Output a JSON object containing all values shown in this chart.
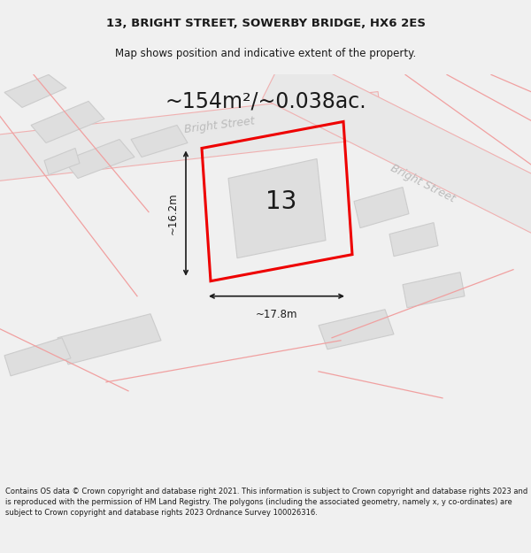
{
  "title_line1": "13, BRIGHT STREET, SOWERBY BRIDGE, HX6 2ES",
  "title_line2": "Map shows position and indicative extent of the property.",
  "area_text": "~154m²/~0.038ac.",
  "number_label": "13",
  "dim_width": "~17.8m",
  "dim_height": "~16.2m",
  "street_label1": "Bright Street",
  "street_label2": "Bright Street",
  "footer_text": "Contains OS data © Crown copyright and database right 2021. This information is subject to Crown copyright and database rights 2023 and is reproduced with the permission of HM Land Registry. The polygons (including the associated geometry, namely x, y co-ordinates) are subject to Crown copyright and database rights 2023 Ordnance Survey 100026316.",
  "bg_color": "#f0f0f0",
  "map_bg_color": "#ffffff",
  "plot_color_red": "#ee0000",
  "building_fill": "#dedede",
  "building_edge": "#cccccc",
  "road_fill": "#e8e8e8",
  "road_edge": "#f0b0b0",
  "pink_line": "#f0a0a0",
  "text_gray": "#aaaaaa",
  "text_dark": "#1a1a1a",
  "title_fontsize": 9.5,
  "subtitle_fontsize": 8.5,
  "area_fontsize": 17,
  "num_fontsize": 20,
  "dim_fontsize": 8.5,
  "street_fontsize": 9
}
